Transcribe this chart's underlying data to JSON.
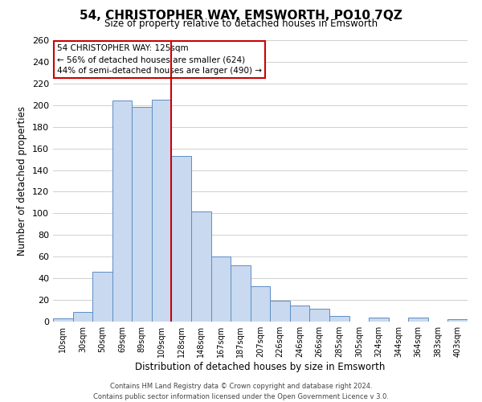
{
  "title": "54, CHRISTOPHER WAY, EMSWORTH, PO10 7QZ",
  "subtitle": "Size of property relative to detached houses in Emsworth",
  "xlabel": "Distribution of detached houses by size in Emsworth",
  "ylabel": "Number of detached properties",
  "bar_labels": [
    "10sqm",
    "30sqm",
    "50sqm",
    "69sqm",
    "89sqm",
    "109sqm",
    "128sqm",
    "148sqm",
    "167sqm",
    "187sqm",
    "207sqm",
    "226sqm",
    "246sqm",
    "266sqm",
    "285sqm",
    "305sqm",
    "324sqm",
    "344sqm",
    "364sqm",
    "383sqm",
    "403sqm"
  ],
  "bar_values": [
    3,
    9,
    46,
    204,
    198,
    205,
    153,
    102,
    60,
    52,
    33,
    19,
    15,
    12,
    5,
    0,
    4,
    0,
    4,
    0,
    2
  ],
  "bar_color": "#c9d9f0",
  "bar_edge_color": "#5b8ec4",
  "grid_color": "#d0d0d0",
  "vline_x_index": 6,
  "vline_color": "#cc0000",
  "annotation_title": "54 CHRISTOPHER WAY: 125sqm",
  "annotation_line1": "← 56% of detached houses are smaller (624)",
  "annotation_line2": "44% of semi-detached houses are larger (490) →",
  "annotation_box_color": "#ffffff",
  "annotation_box_edge_color": "#cc0000",
  "ylim": [
    0,
    260
  ],
  "yticks": [
    0,
    20,
    40,
    60,
    80,
    100,
    120,
    140,
    160,
    180,
    200,
    220,
    240,
    260
  ],
  "footer1": "Contains HM Land Registry data © Crown copyright and database right 2024.",
  "footer2": "Contains public sector information licensed under the Open Government Licence v 3.0."
}
